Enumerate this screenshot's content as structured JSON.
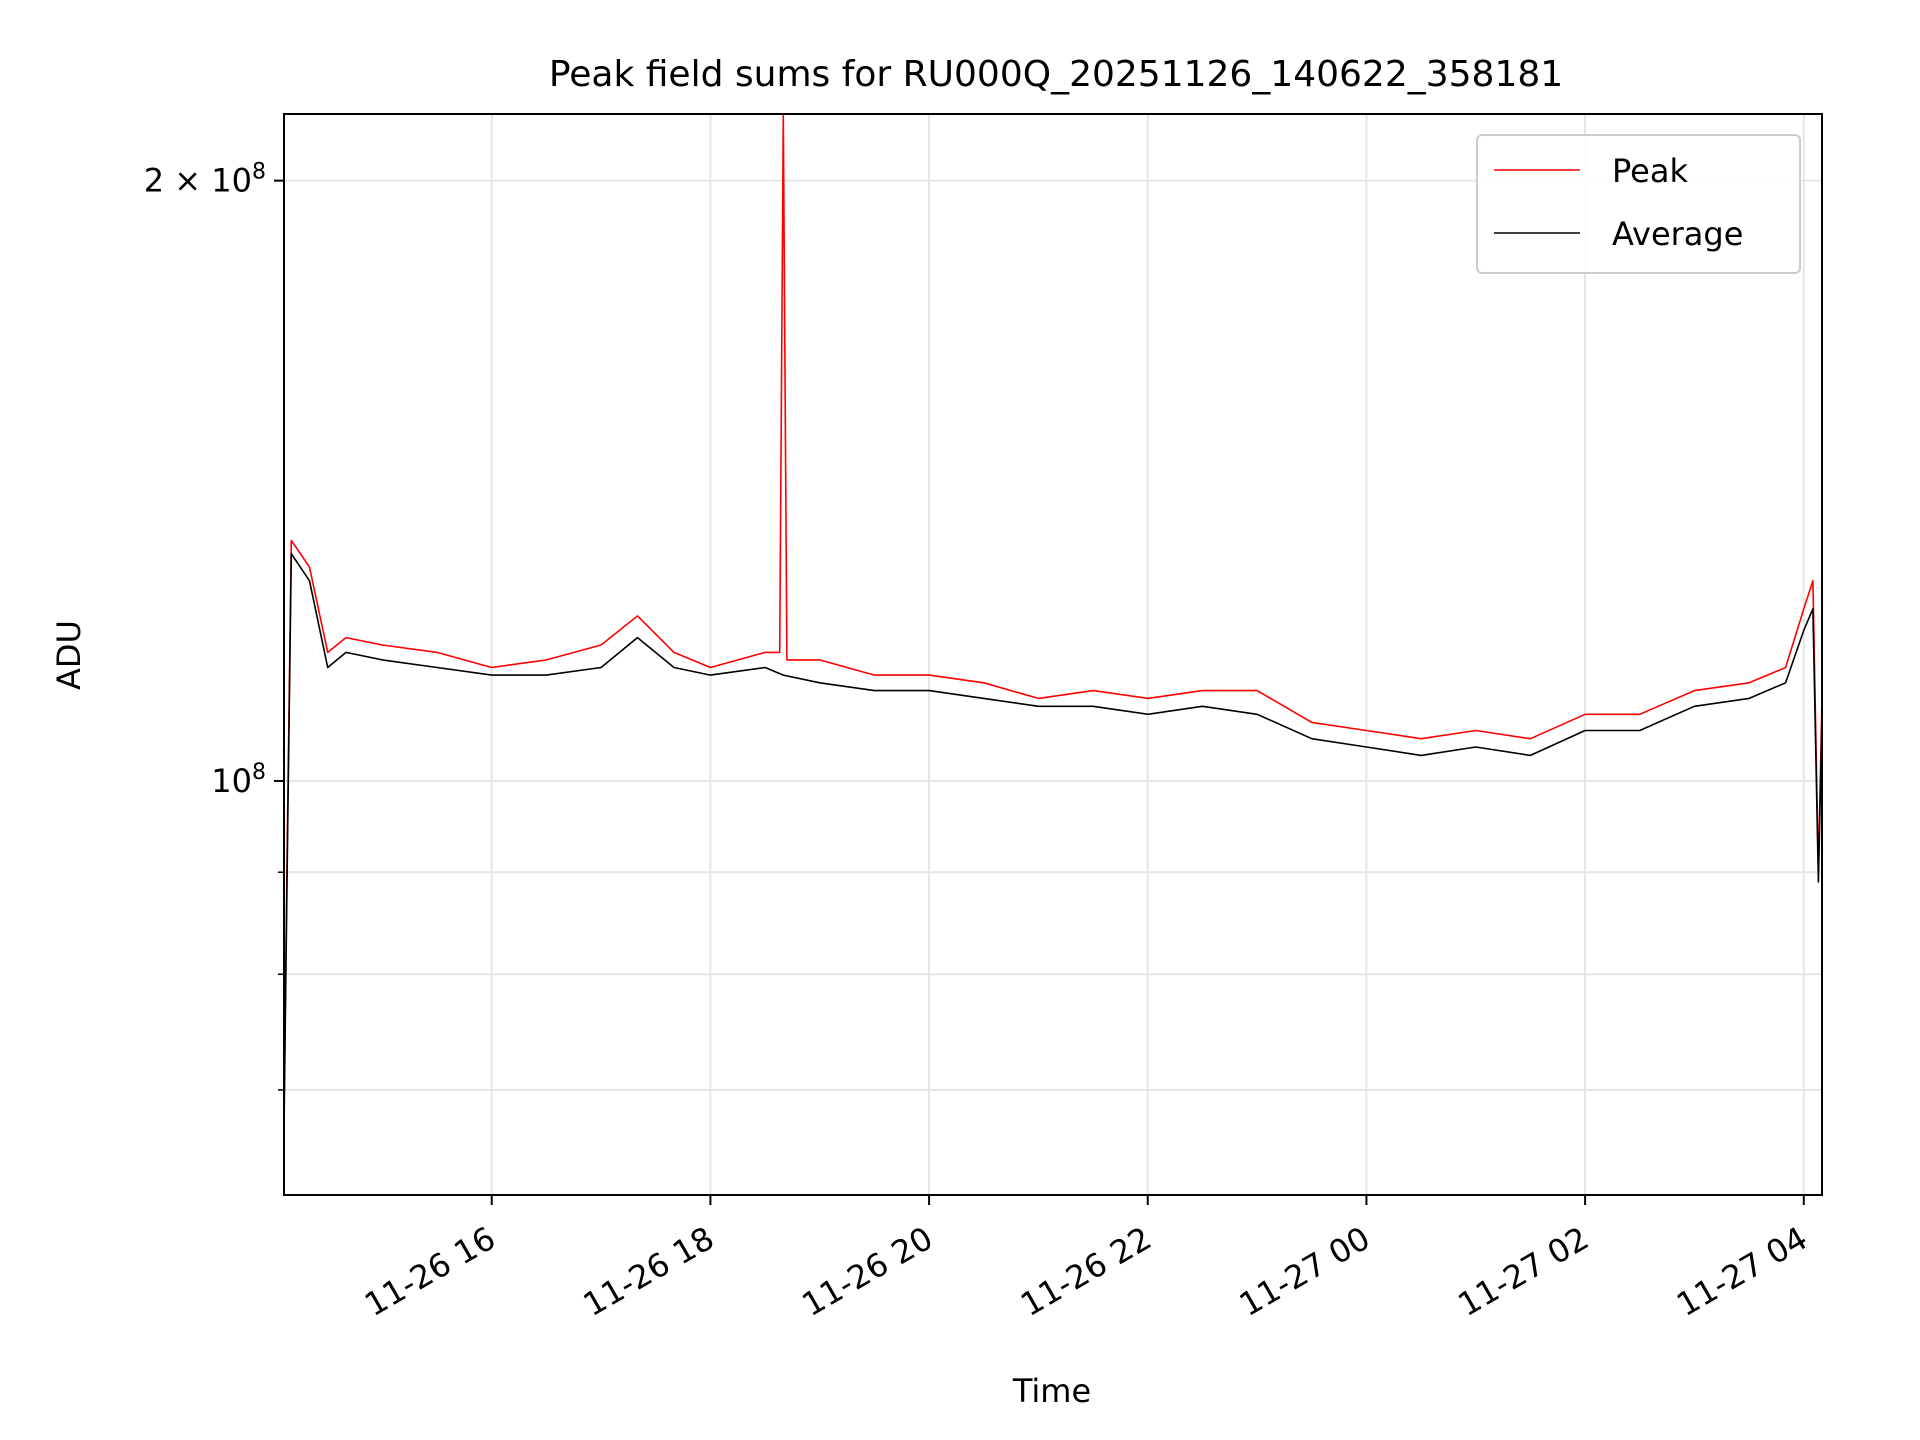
{
  "chart_data": {
    "type": "line",
    "title": "Peak field sums for RU000Q_20251126_140622_358181",
    "xlabel": "Time",
    "ylabel": "ADU",
    "yscale": "log",
    "xlim": [
      "2025-11-26 14:06",
      "2025-11-27 04:10"
    ],
    "ylim": [
      62000000,
      216000000
    ],
    "grid": true,
    "legend_position": "upper right",
    "x_ticks": [
      {
        "label": "11-26 16",
        "t": "2025-11-26 16:00"
      },
      {
        "label": "11-26 18",
        "t": "2025-11-26 18:00"
      },
      {
        "label": "11-26 20",
        "t": "2025-11-26 20:00"
      },
      {
        "label": "11-26 22",
        "t": "2025-11-26 22:00"
      },
      {
        "label": "11-27 00",
        "t": "2025-11-27 00:00"
      },
      {
        "label": "11-27 02",
        "t": "2025-11-27 02:00"
      },
      {
        "label": "11-27 04",
        "t": "2025-11-27 04:00"
      }
    ],
    "y_major_ticks": [
      {
        "label": "10^8",
        "value": 100000000
      },
      {
        "label": "2 × 10^8",
        "value": 200000000
      }
    ],
    "y_minor_ticks": [
      70000000,
      80000000,
      90000000
    ],
    "series": [
      {
        "name": "Peak",
        "color": "#ff0000",
        "x": [
          "2025-11-26 14:06",
          "2025-11-26 14:08",
          "2025-11-26 14:10",
          "2025-11-26 14:15",
          "2025-11-26 14:20",
          "2025-11-26 14:30",
          "2025-11-26 14:40",
          "2025-11-26 15:00",
          "2025-11-26 15:30",
          "2025-11-26 16:00",
          "2025-11-26 16:30",
          "2025-11-26 17:00",
          "2025-11-26 17:20",
          "2025-11-26 17:40",
          "2025-11-26 18:00",
          "2025-11-26 18:30",
          "2025-11-26 18:38",
          "2025-11-26 18:40",
          "2025-11-26 18:42",
          "2025-11-26 19:00",
          "2025-11-26 19:30",
          "2025-11-26 20:00",
          "2025-11-26 20:30",
          "2025-11-26 21:00",
          "2025-11-26 21:30",
          "2025-11-26 22:00",
          "2025-11-26 22:30",
          "2025-11-26 23:00",
          "2025-11-26 23:30",
          "2025-11-27 00:00",
          "2025-11-27 00:30",
          "2025-11-27 01:00",
          "2025-11-27 01:30",
          "2025-11-27 02:00",
          "2025-11-27 02:30",
          "2025-11-27 03:00",
          "2025-11-27 03:30",
          "2025-11-27 03:50",
          "2025-11-27 04:00",
          "2025-11-27 04:05",
          "2025-11-27 04:08",
          "2025-11-27 04:10"
        ],
        "y": [
          68000000,
          96000000,
          132000000,
          130000000,
          128000000,
          116000000,
          118000000,
          117000000,
          116000000,
          114000000,
          115000000,
          117000000,
          121000000,
          116000000,
          114000000,
          116000000,
          116000000,
          216000000,
          115000000,
          115000000,
          113000000,
          113000000,
          112000000,
          110000000,
          111000000,
          110000000,
          111000000,
          111000000,
          107000000,
          106000000,
          105000000,
          106000000,
          105000000,
          108000000,
          108000000,
          111000000,
          112000000,
          114000000,
          122000000,
          126000000,
          90000000,
          110000000
        ]
      },
      {
        "name": "Average",
        "color": "#000000",
        "x": [
          "2025-11-26 14:06",
          "2025-11-26 14:08",
          "2025-11-26 14:10",
          "2025-11-26 14:15",
          "2025-11-26 14:20",
          "2025-11-26 14:30",
          "2025-11-26 14:40",
          "2025-11-26 15:00",
          "2025-11-26 15:30",
          "2025-11-26 16:00",
          "2025-11-26 16:30",
          "2025-11-26 17:00",
          "2025-11-26 17:20",
          "2025-11-26 17:40",
          "2025-11-26 18:00",
          "2025-11-26 18:30",
          "2025-11-26 18:40",
          "2025-11-26 19:00",
          "2025-11-26 19:30",
          "2025-11-26 20:00",
          "2025-11-26 20:30",
          "2025-11-26 21:00",
          "2025-11-26 21:30",
          "2025-11-26 22:00",
          "2025-11-26 22:30",
          "2025-11-26 23:00",
          "2025-11-26 23:30",
          "2025-11-27 00:00",
          "2025-11-27 00:30",
          "2025-11-27 01:00",
          "2025-11-27 01:30",
          "2025-11-27 02:00",
          "2025-11-27 02:30",
          "2025-11-27 03:00",
          "2025-11-27 03:30",
          "2025-11-27 03:50",
          "2025-11-27 04:00",
          "2025-11-27 04:05",
          "2025-11-27 04:08",
          "2025-11-27 04:10"
        ],
        "y": [
          67000000,
          94000000,
          130000000,
          128000000,
          126000000,
          114000000,
          116000000,
          115000000,
          114000000,
          113000000,
          113000000,
          114000000,
          118000000,
          114000000,
          113000000,
          114000000,
          113000000,
          112000000,
          111000000,
          111000000,
          110000000,
          109000000,
          109000000,
          108000000,
          109000000,
          108000000,
          105000000,
          104000000,
          103000000,
          104000000,
          103000000,
          106000000,
          106000000,
          109000000,
          110000000,
          112000000,
          119000000,
          122000000,
          89000000,
          108000000
        ]
      }
    ]
  }
}
